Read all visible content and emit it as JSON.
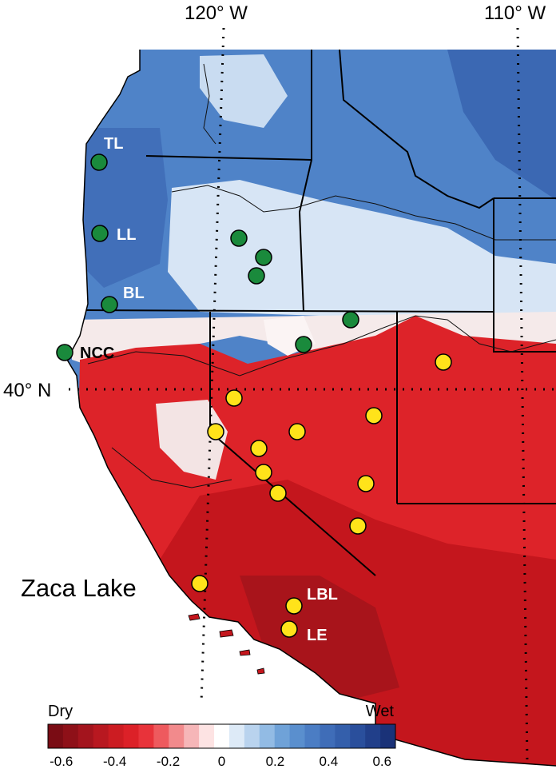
{
  "graticule": {
    "lon_labels": [
      "120° W",
      "110° W"
    ],
    "lat_labels": [
      "40° N"
    ]
  },
  "sites": {
    "wet": [
      {
        "label": "TL"
      },
      {
        "label": "LL"
      },
      {
        "label": "BL"
      },
      {
        "label": "NCC"
      },
      {
        "label": ""
      },
      {
        "label": ""
      },
      {
        "label": ""
      },
      {
        "label": ""
      },
      {
        "label": ""
      }
    ],
    "dry": [
      {
        "label": ""
      },
      {
        "label": ""
      },
      {
        "label": ""
      },
      {
        "label": ""
      },
      {
        "label": ""
      },
      {
        "label": ""
      },
      {
        "label": ""
      },
      {
        "label": ""
      },
      {
        "label": ""
      },
      {
        "label": ""
      },
      {
        "label": ""
      },
      {
        "label": ""
      },
      {
        "label": "Zaca Lake"
      },
      {
        "label": "LBL"
      },
      {
        "label": "LE"
      }
    ]
  },
  "colorbar": {
    "left_label": "Dry",
    "right_label": "Wet",
    "ticks": [
      "-0.6",
      "-0.4",
      "-0.2",
      "0",
      "0.2",
      "0.4",
      "0.6"
    ],
    "range": [
      -0.65,
      0.65
    ],
    "colors": [
      "#7a0c14",
      "#8e1018",
      "#a3141d",
      "#b81820",
      "#cc1c22",
      "#dc2128",
      "#e8333a",
      "#ee5a5e",
      "#f28a8c",
      "#f6b6b8",
      "#fde3e3",
      "#ffffff",
      "#ddeaf7",
      "#b9d3ee",
      "#92bbe4",
      "#6fa2d8",
      "#5a8fce",
      "#4b7dc4",
      "#3f6db8",
      "#345fab",
      "#2a4f9c",
      "#213f8a",
      "#1a3278"
    ]
  },
  "colors": {
    "wet_site": "#1a8a3c",
    "dry_site": "#ffe31a",
    "land_wet": "#4a7fc6",
    "land_dry": "#d62028",
    "borders": "#000000"
  }
}
